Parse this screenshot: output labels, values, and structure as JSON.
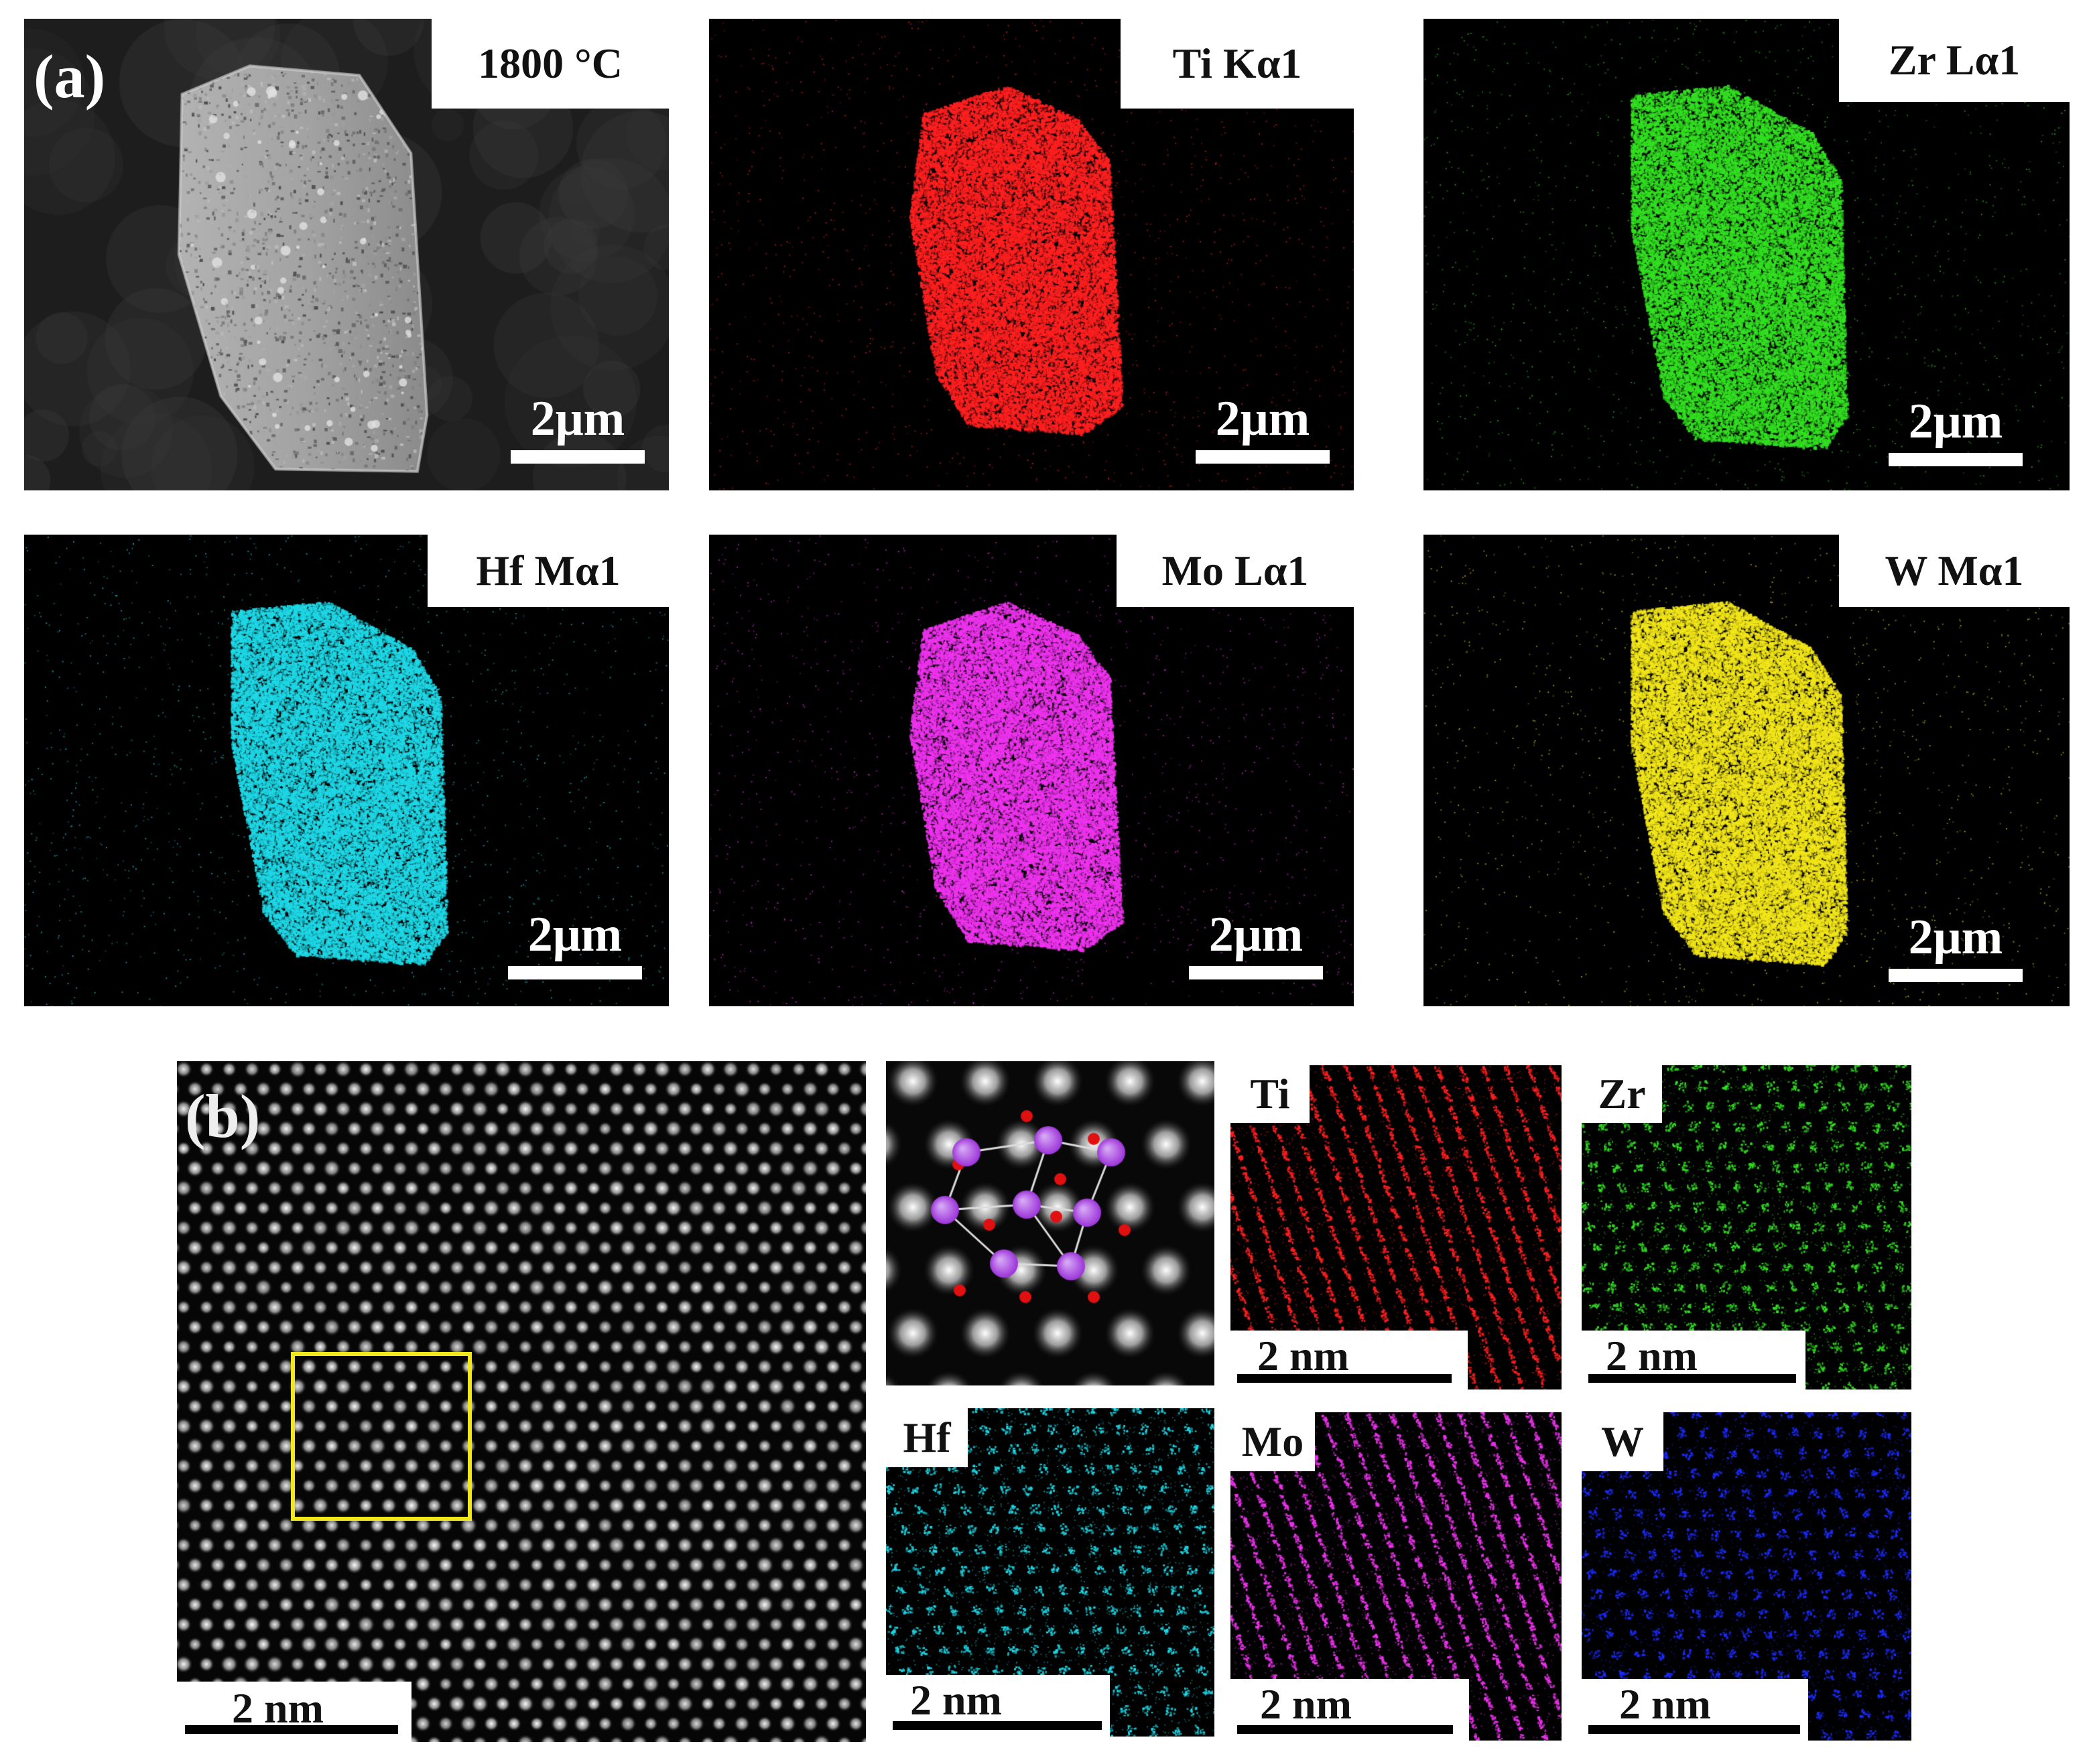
{
  "panel_a": {
    "letter": "(a)",
    "scale_bar": "2μm",
    "maps": [
      {
        "id": "sem",
        "label": "1800 °C",
        "color": "#bdbdbd"
      },
      {
        "id": "ti",
        "label": "Ti Kα1",
        "color": "#ff2020"
      },
      {
        "id": "zr",
        "label": "Zr Lα1",
        "color": "#33e022"
      },
      {
        "id": "hf",
        "label": "Hf Mα1",
        "color": "#1fd8e6"
      },
      {
        "id": "mo",
        "label": "Mo Lα1",
        "color": "#ee33ee"
      },
      {
        "id": "w",
        "label": "W Mα1",
        "color": "#f2e61a"
      }
    ]
  },
  "panel_b": {
    "letter": "(b)",
    "scale_bar": "2 nm",
    "maps": [
      {
        "id": "ti",
        "label": "Ti",
        "color": "#ff2020"
      },
      {
        "id": "zr",
        "label": "Zr",
        "color": "#33e022"
      },
      {
        "id": "hf",
        "label": "Hf",
        "color": "#1fd8e6"
      },
      {
        "id": "mo",
        "label": "Mo",
        "color": "#ee33ee"
      },
      {
        "id": "w",
        "label": "W",
        "color": "#1a2cff"
      }
    ],
    "atom_colors": {
      "metal": "#9a2fd8",
      "nonmetal": "#e01010"
    }
  }
}
